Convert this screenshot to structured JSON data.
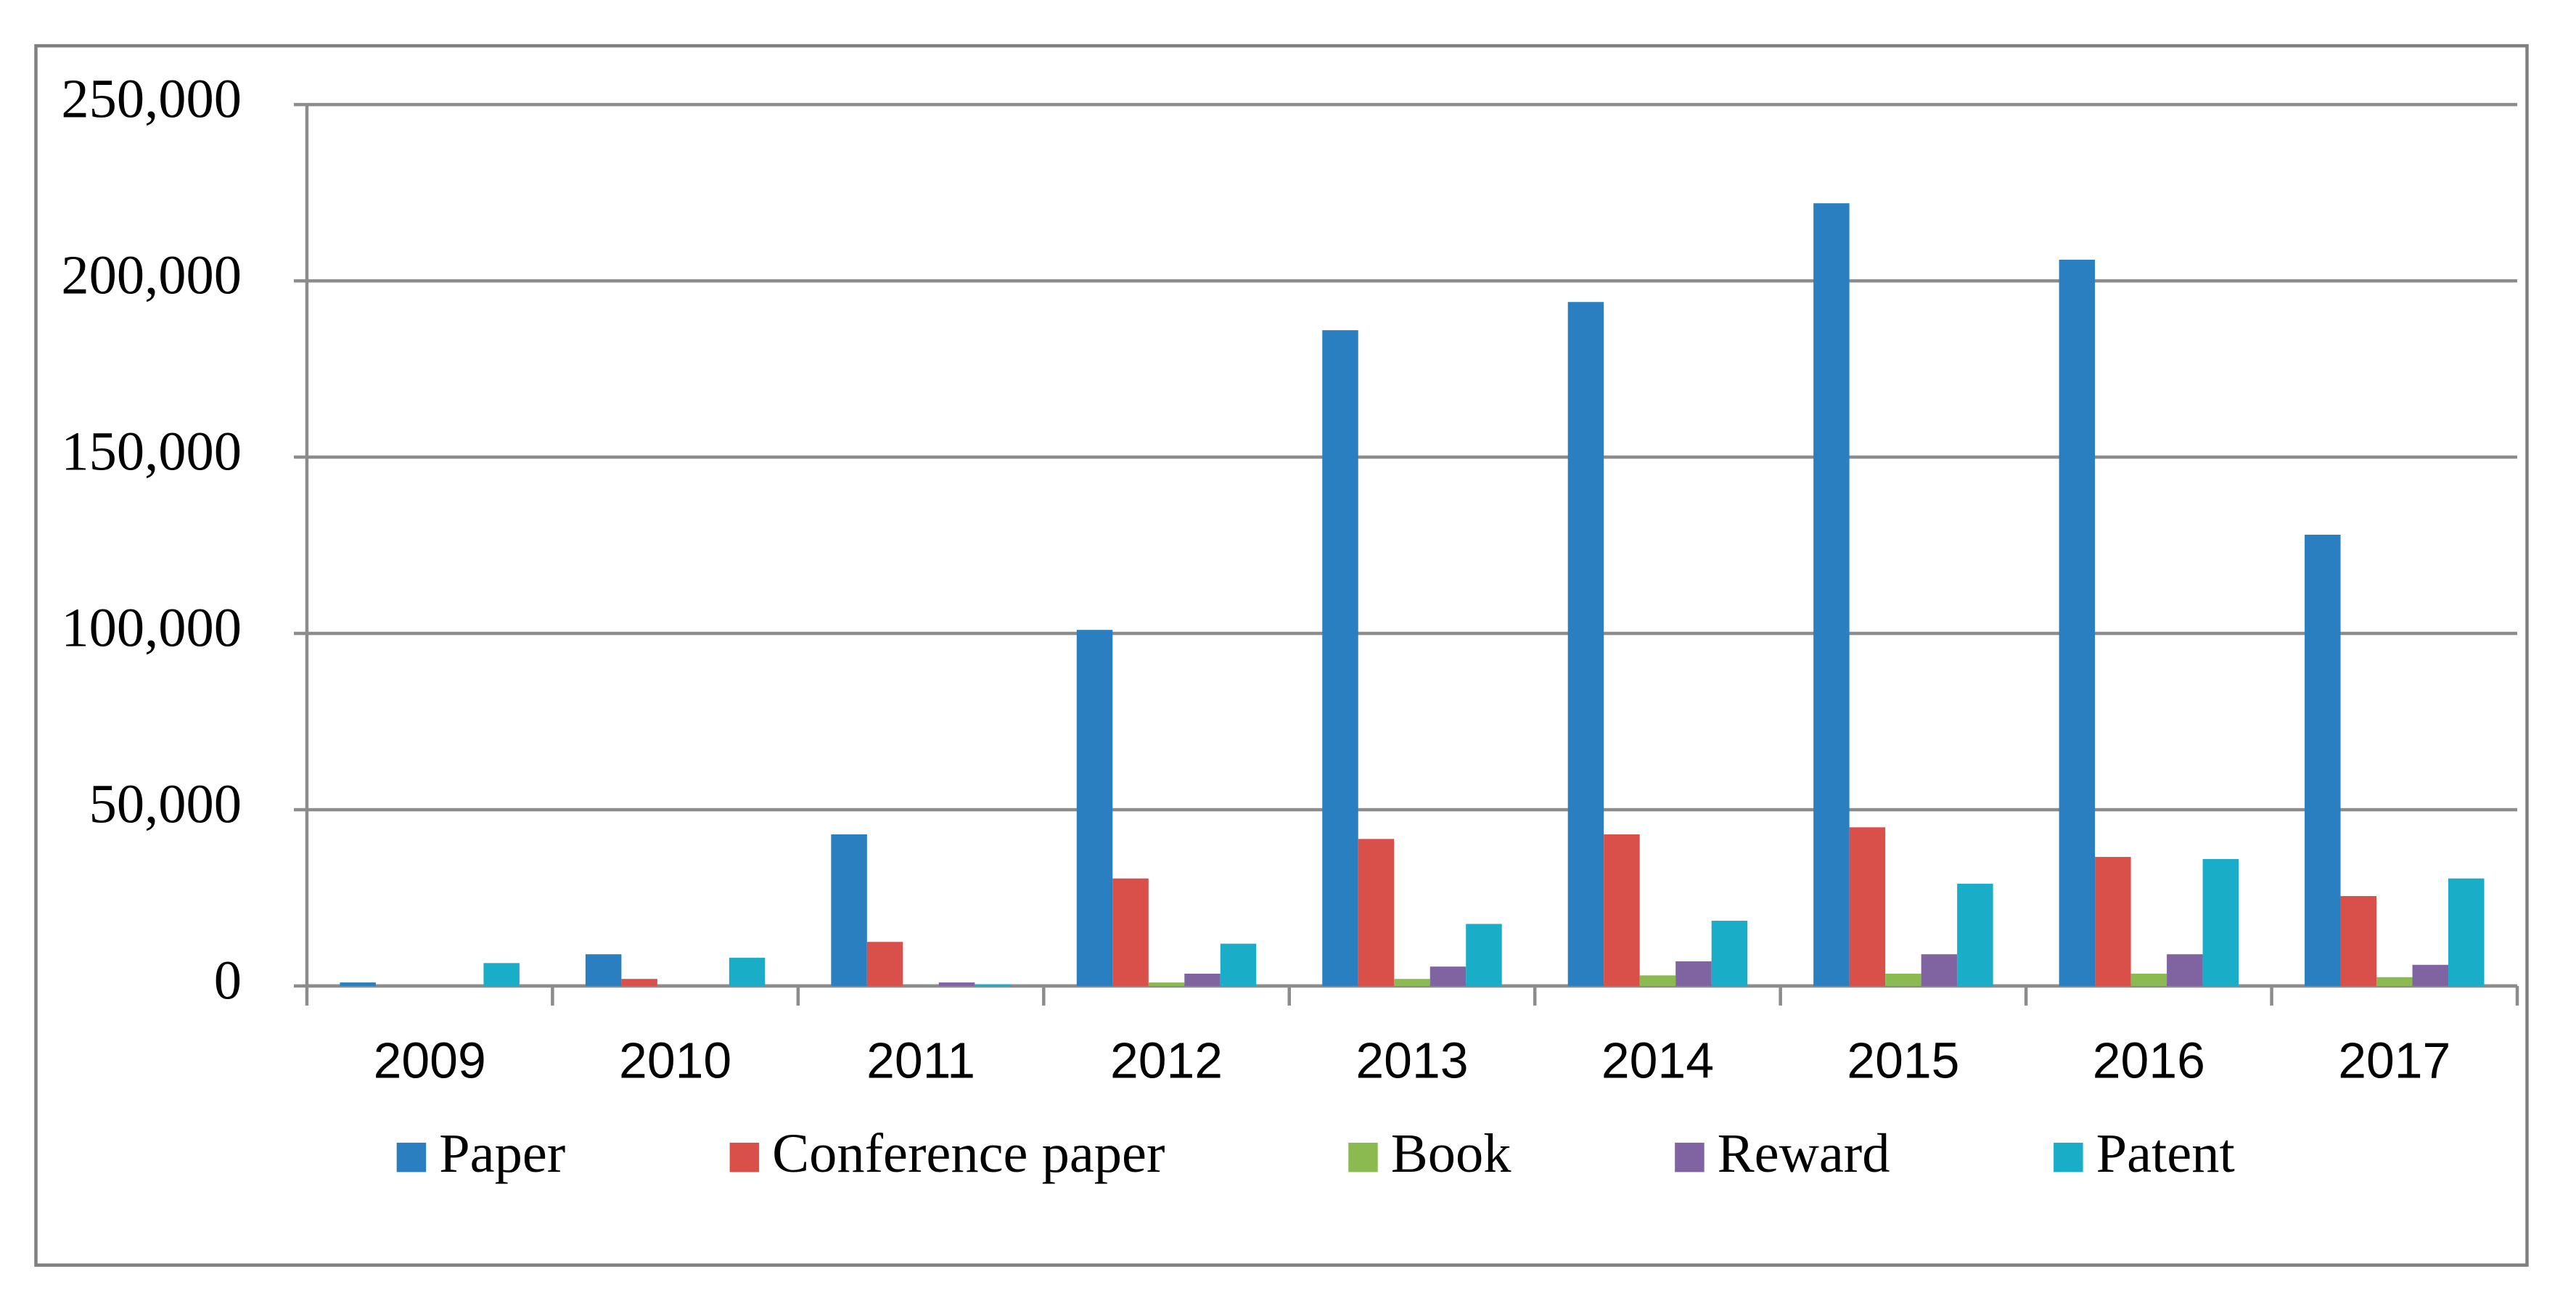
{
  "chart_data": {
    "type": "bar",
    "categories": [
      "2009",
      "2010",
      "2011",
      "2012",
      "2013",
      "2014",
      "2015",
      "2016",
      "2017"
    ],
    "series": [
      {
        "name": "Paper",
        "color": "#2a7fc1",
        "values": [
          1000,
          9000,
          43000,
          101000,
          186000,
          194000,
          222000,
          206000,
          128000
        ]
      },
      {
        "name": "Conference paper",
        "color": "#d9504a",
        "values": [
          0,
          2000,
          12500,
          30500,
          41700,
          43000,
          45000,
          36600,
          25500
        ]
      },
      {
        "name": "Book",
        "color": "#8bbb50",
        "values": [
          0,
          0,
          0,
          1000,
          2000,
          3000,
          3500,
          3500,
          2500
        ]
      },
      {
        "name": "Reward",
        "color": "#8064a2",
        "values": [
          0,
          0,
          1000,
          3500,
          5500,
          7000,
          9000,
          9000,
          6000
        ]
      },
      {
        "name": "Patent",
        "color": "#19adc8",
        "values": [
          6500,
          8000,
          500,
          12000,
          17600,
          18500,
          29000,
          36000,
          30500
        ]
      }
    ],
    "ylim": [
      0,
      250000
    ],
    "yticks": [
      0,
      {
        "value": 50000,
        "label": "50,000"
      },
      {
        "value": 100000,
        "label": "100,000"
      },
      {
        "value": 150000,
        "label": "150,000"
      },
      {
        "value": 200000,
        "label": "200,000"
      },
      {
        "value": 250000,
        "label": "250,000"
      }
    ],
    "grid": true,
    "legend": "bottom"
  }
}
